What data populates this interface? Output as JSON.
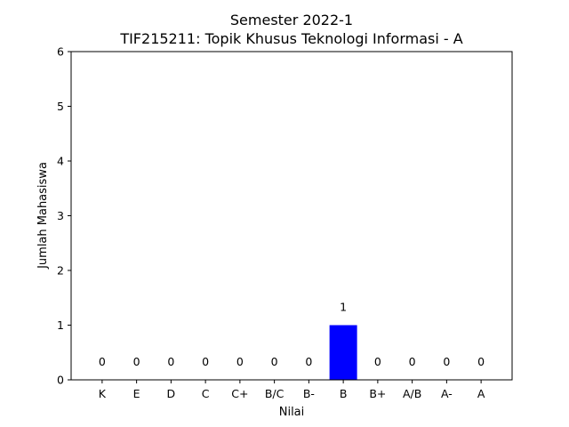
{
  "chart_data": {
    "type": "bar",
    "title": "Semester 2022-1",
    "subtitle": "TIF215211: Topik Khusus Teknologi Informasi - A",
    "xlabel": "Nilai",
    "ylabel": "Jumlah Mahasiswa",
    "categories": [
      "K",
      "E",
      "D",
      "C",
      "C+",
      "B/C",
      "B-",
      "B",
      "B+",
      "A/B",
      "A-",
      "A"
    ],
    "values": [
      0,
      0,
      0,
      0,
      0,
      0,
      0,
      1,
      0,
      0,
      0,
      0
    ],
    "data_labels": [
      "0",
      "0",
      "0",
      "0",
      "0",
      "0",
      "0",
      "1",
      "0",
      "0",
      "0",
      "0"
    ],
    "ylim": [
      0,
      6
    ],
    "yticks": [
      "0",
      "1",
      "2",
      "3",
      "4",
      "5",
      "6"
    ],
    "grid": false,
    "bar_color": "#0000ff"
  }
}
